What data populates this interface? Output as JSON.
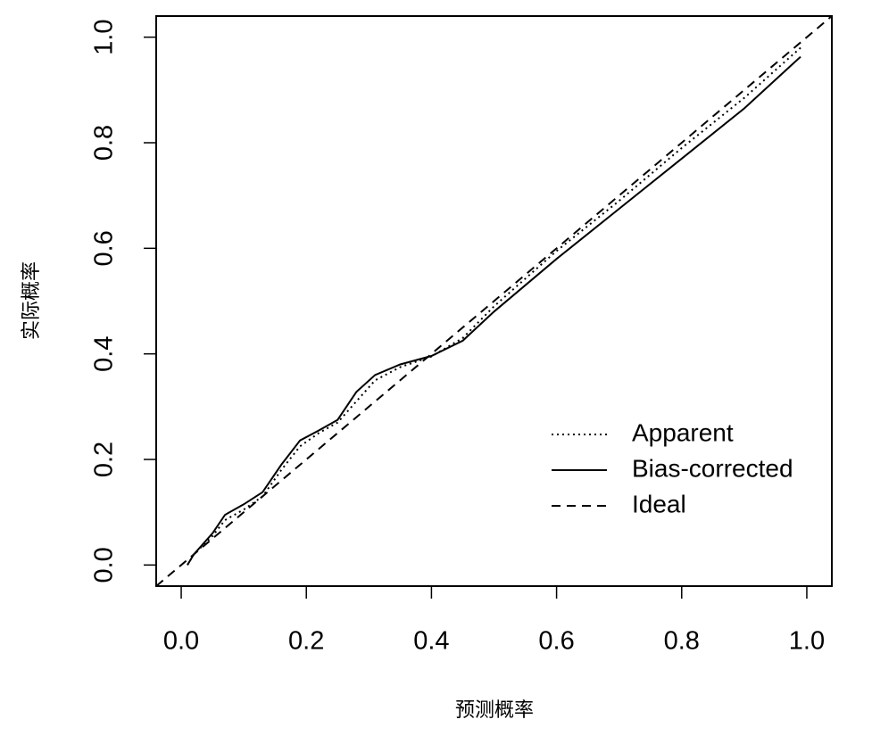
{
  "chart_data": {
    "type": "line",
    "xlabel": "预测概率",
    "ylabel": "实际概率",
    "xlim": [
      -0.04,
      1.04
    ],
    "ylim": [
      -0.04,
      1.04
    ],
    "xticks": [
      {
        "value": 0,
        "label": "0.0"
      },
      0.2,
      0.4,
      0.6,
      0.8,
      {
        "value": 1,
        "label": "1.0"
      }
    ],
    "yticks": [
      {
        "value": 0,
        "label": "0.0"
      },
      0.2,
      0.4,
      0.6,
      0.8,
      {
        "value": 1,
        "label": "1.0"
      }
    ],
    "legend": "lower right",
    "series": [
      {
        "name": "Apparent",
        "color": "#000000",
        "dash": "dotted",
        "x": [
          0.01,
          0.02,
          0.05,
          0.07,
          0.1,
          0.13,
          0.16,
          0.19,
          0.22,
          0.25,
          0.28,
          0.31,
          0.35,
          0.4,
          0.45,
          0.5,
          0.6,
          0.7,
          0.8,
          0.9,
          0.99
        ],
        "values": [
          0.0,
          0.02,
          0.055,
          0.085,
          0.105,
          0.13,
          0.18,
          0.225,
          0.25,
          0.27,
          0.31,
          0.35,
          0.375,
          0.395,
          0.43,
          0.49,
          0.595,
          0.69,
          0.79,
          0.885,
          0.98
        ]
      },
      {
        "name": "Bias-corrected",
        "color": "#000000",
        "dash": "solid",
        "x": [
          0.01,
          0.02,
          0.05,
          0.07,
          0.1,
          0.13,
          0.16,
          0.19,
          0.22,
          0.25,
          0.28,
          0.31,
          0.35,
          0.4,
          0.45,
          0.5,
          0.6,
          0.7,
          0.8,
          0.9,
          0.99
        ],
        "values": [
          0.0,
          0.02,
          0.06,
          0.095,
          0.115,
          0.138,
          0.19,
          0.236,
          0.255,
          0.275,
          0.328,
          0.36,
          0.38,
          0.396,
          0.425,
          0.48,
          0.58,
          0.675,
          0.77,
          0.865,
          0.963
        ]
      },
      {
        "name": "Ideal",
        "color": "#000000",
        "dash": "dashed",
        "x": [
          -0.04,
          1.04
        ],
        "values": [
          -0.04,
          1.04
        ]
      }
    ]
  }
}
